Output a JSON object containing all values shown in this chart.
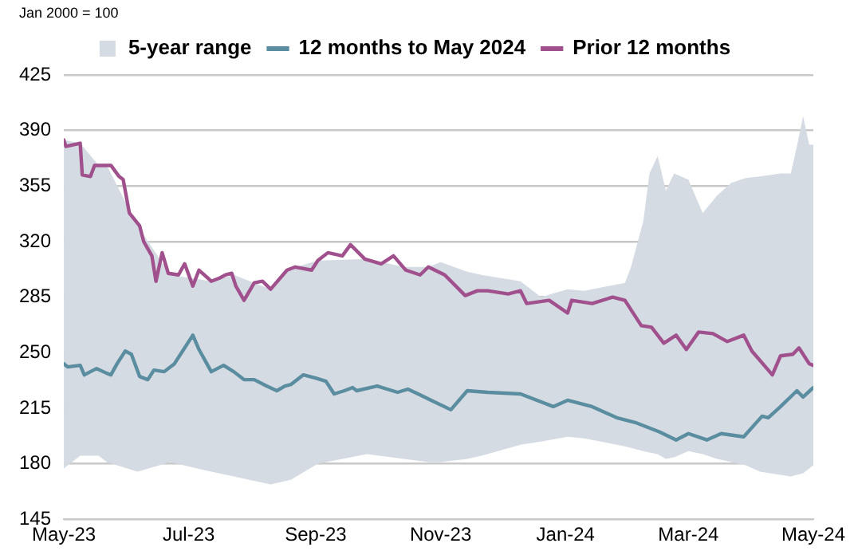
{
  "chart_data": {
    "type": "line",
    "annotations": [
      "Jan 2000 = 100"
    ],
    "xlim": [
      "2023-05-01",
      "2024-05-01"
    ],
    "xticks": [
      {
        "value": "2023-05-01",
        "label": "May-23"
      },
      {
        "value": "2023-07-01",
        "label": "Jul-23"
      },
      {
        "value": "2023-09-01",
        "label": "Sep-23"
      },
      {
        "value": "2023-11-01",
        "label": "Nov-23"
      },
      {
        "value": "2024-01-01",
        "label": "Jan-24"
      },
      {
        "value": "2024-03-01",
        "label": "Mar-24"
      },
      {
        "value": "2024-05-01",
        "label": "May-24"
      }
    ],
    "ylim": [
      145,
      425
    ],
    "yticks": [
      145,
      180,
      215,
      250,
      285,
      320,
      355,
      390,
      425
    ],
    "grid": "y",
    "legend": "top",
    "marker": "none",
    "line_style": "solid",
    "series": [
      {
        "name": "5-year range",
        "type": "line",
        "color": "#d5dbe3",
        "x": [
          "2023-05-01",
          "2023-05-09",
          "2023-05-18",
          "2023-05-22",
          "2023-06-06",
          "2023-06-22",
          "2023-07-12",
          "2023-07-23",
          "2023-08-10",
          "2023-08-20",
          "2023-09-02",
          "2023-09-26",
          "2023-10-14",
          "2023-10-26",
          "2023-11-01",
          "2023-11-14",
          "2023-11-21",
          "2023-12-10",
          "2023-12-20",
          "2024-01-02",
          "2024-01-10",
          "2024-01-30",
          "2024-02-02",
          "2024-02-08",
          "2024-02-11",
          "2024-02-15",
          "2024-02-19",
          "2024-02-23",
          "2024-03-01",
          "2024-03-08",
          "2024-03-15",
          "2024-03-22",
          "2024-03-29",
          "2024-04-05",
          "2024-04-15",
          "2024-04-20",
          "2024-04-23",
          "2024-04-26",
          "2024-04-29",
          "2024-05-01"
        ],
        "lower": [
          177,
          185,
          185,
          181,
          175,
          181,
          175,
          172,
          167,
          170,
          180,
          186,
          183,
          181,
          181,
          183,
          185,
          192,
          194,
          197,
          196,
          191,
          190,
          188,
          187,
          186,
          183,
          184,
          188,
          186,
          183,
          181,
          179,
          175,
          173,
          172,
          173,
          174,
          177,
          179
        ],
        "upper": [
          384,
          382,
          368,
          368,
          330,
          299,
          295,
          299,
          290,
          303,
          308,
          309,
          304,
          304,
          307,
          301,
          299,
          295,
          285,
          290,
          289,
          294,
          304,
          333,
          363,
          374,
          352,
          363,
          359,
          338,
          349,
          357,
          360,
          361,
          363,
          363,
          380,
          399,
          381,
          381
        ],
        "values": [
          null,
          null,
          null,
          null,
          null,
          null,
          null,
          null,
          null,
          null,
          null,
          null,
          null,
          null,
          null,
          null,
          null,
          null,
          null,
          null,
          null,
          null,
          null,
          null,
          null,
          null,
          null,
          null,
          null,
          null,
          null,
          null,
          null,
          null,
          null,
          null,
          null,
          null,
          null,
          null
        ]
      },
      {
        "name": "12 months to May 2024",
        "color": "#5b8da0",
        "x": [
          "2023-05-01",
          "2023-05-03",
          "2023-05-09",
          "2023-05-11",
          "2023-05-17",
          "2023-05-22",
          "2023-05-24",
          "2023-05-27",
          "2023-05-31",
          "2023-06-03",
          "2023-06-07",
          "2023-06-11",
          "2023-06-14",
          "2023-06-19",
          "2023-06-24",
          "2023-06-28",
          "2023-07-03",
          "2023-07-06",
          "2023-07-12",
          "2023-07-18",
          "2023-07-23",
          "2023-07-28",
          "2023-08-02",
          "2023-08-08",
          "2023-08-13",
          "2023-08-17",
          "2023-08-20",
          "2023-08-26",
          "2023-09-01",
          "2023-09-06",
          "2023-09-10",
          "2023-09-15",
          "2023-09-19",
          "2023-09-21",
          "2023-10-01",
          "2023-10-11",
          "2023-10-16",
          "2023-10-21",
          "2023-10-29",
          "2023-11-06",
          "2023-11-14",
          "2023-11-24",
          "2023-12-10",
          "2023-12-26",
          "2024-01-02",
          "2024-01-14",
          "2024-01-26",
          "2024-02-04",
          "2024-02-16",
          "2024-02-24",
          "2024-03-01",
          "2024-03-10",
          "2024-03-17",
          "2024-03-28",
          "2024-04-06",
          "2024-04-09",
          "2024-04-15",
          "2024-04-23",
          "2024-04-26",
          "2024-05-01"
        ],
        "values": [
          243,
          241,
          242,
          236,
          240,
          237,
          236,
          243,
          251,
          249,
          235,
          233,
          239,
          238,
          243,
          251,
          261,
          252,
          238,
          242,
          238,
          233,
          233,
          229,
          226,
          229,
          230,
          236,
          234,
          232,
          224,
          226,
          228,
          226,
          229,
          225,
          227,
          224,
          219,
          214,
          226,
          225,
          224,
          216,
          220,
          216,
          209,
          206,
          200,
          195,
          199,
          195,
          199,
          197,
          210,
          209,
          216,
          226,
          222,
          228
        ]
      },
      {
        "name": "Prior 12 months",
        "color": "#a0508c",
        "x": [
          "2023-05-01",
          "2023-05-02",
          "2023-05-09",
          "2023-05-10",
          "2023-05-14",
          "2023-05-16",
          "2023-05-24",
          "2023-05-28",
          "2023-05-30",
          "2023-06-02",
          "2023-06-07",
          "2023-06-09",
          "2023-06-13",
          "2023-06-15",
          "2023-06-18",
          "2023-06-21",
          "2023-06-26",
          "2023-06-29",
          "2023-07-03",
          "2023-07-06",
          "2023-07-12",
          "2023-07-16",
          "2023-07-19",
          "2023-07-22",
          "2023-07-24",
          "2023-07-28",
          "2023-08-02",
          "2023-08-06",
          "2023-08-10",
          "2023-08-18",
          "2023-08-22",
          "2023-08-30",
          "2023-09-02",
          "2023-09-07",
          "2023-09-14",
          "2023-09-18",
          "2023-09-25",
          "2023-10-03",
          "2023-10-09",
          "2023-10-15",
          "2023-10-22",
          "2023-10-26",
          "2023-11-03",
          "2023-11-13",
          "2023-11-19",
          "2023-11-24",
          "2023-12-04",
          "2023-12-10",
          "2023-12-13",
          "2023-12-24",
          "2024-01-02",
          "2024-01-04",
          "2024-01-14",
          "2024-01-24",
          "2024-01-30",
          "2024-02-07",
          "2024-02-12",
          "2024-02-18",
          "2024-02-24",
          "2024-02-29",
          "2024-03-06",
          "2024-03-13",
          "2024-03-20",
          "2024-03-28",
          "2024-04-01",
          "2024-04-07",
          "2024-04-11",
          "2024-04-15",
          "2024-04-21",
          "2024-04-24",
          "2024-04-29",
          "2024-05-01"
        ],
        "values": [
          384,
          380,
          382,
          362,
          361,
          368,
          368,
          361,
          359,
          338,
          330,
          320,
          311,
          295,
          313,
          300,
          299,
          306,
          292,
          302,
          295,
          297,
          299,
          300,
          292,
          283,
          294,
          295,
          290,
          302,
          304,
          302,
          308,
          313,
          311,
          318,
          309,
          306,
          311,
          302,
          299,
          304,
          299,
          286,
          289,
          289,
          287,
          289,
          281,
          283,
          275,
          283,
          281,
          285,
          283,
          267,
          266,
          256,
          261,
          252,
          263,
          262,
          257,
          261,
          251,
          242,
          236,
          248,
          249,
          253,
          243,
          242
        ]
      }
    ]
  }
}
